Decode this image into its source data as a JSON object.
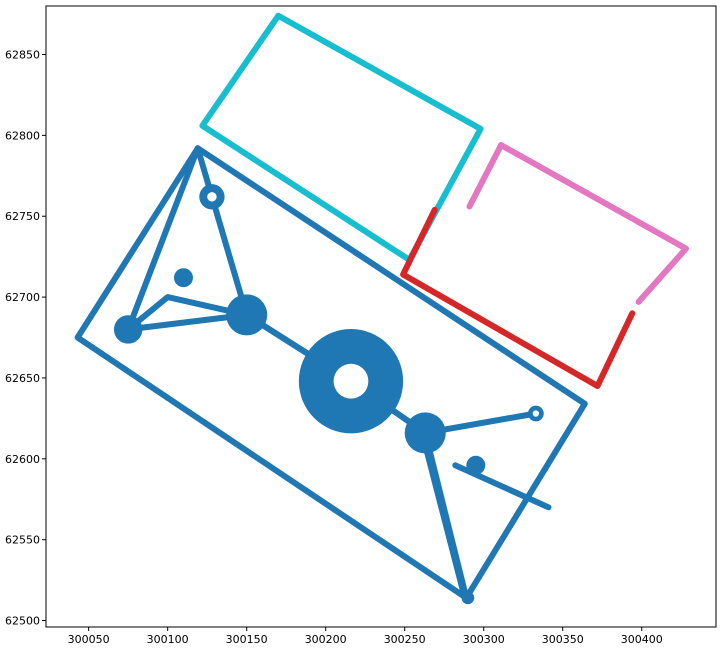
{
  "chart_data": {
    "type": "map",
    "title": "",
    "xlabel": "",
    "ylabel": "",
    "xlim": [
      300023,
      300447
    ],
    "ylim": [
      62496,
      62880
    ],
    "grid": false,
    "x_ticks": [
      300050,
      300100,
      300150,
      300200,
      300250,
      300300,
      300350,
      300400
    ],
    "y_ticks": [
      62500,
      62550,
      62600,
      62650,
      62700,
      62750,
      62800,
      62850
    ],
    "x_tick_labels": [
      "300050",
      "300100",
      "300150",
      "300200",
      "300250",
      "300300",
      "300350",
      "300400"
    ],
    "y_tick_labels": [
      "62500",
      "62550",
      "62600",
      "62650",
      "62700",
      "62750",
      "62800",
      "62850"
    ],
    "colors": {
      "blue": "#1f77b4",
      "cyan": "#17becf",
      "pink": "#e377c2",
      "red": "#d62728"
    },
    "series": [
      {
        "color": "#1f77b4",
        "kind": "outline",
        "points": [
          [
            300119,
            62792
          ],
          [
            300364,
            62634
          ],
          [
            300289,
            62514
          ],
          [
            300043,
            62675
          ],
          [
            300119,
            62792
          ]
        ]
      },
      {
        "color": "#1f77b4",
        "kind": "road",
        "points": [
          [
            300075,
            62680
          ],
          [
            300150,
            62689
          ],
          [
            300216,
            62648
          ],
          [
            300263,
            62616
          ],
          [
            300333,
            62628
          ]
        ]
      },
      {
        "color": "#1f77b4",
        "kind": "road",
        "points": [
          [
            300119,
            62792
          ],
          [
            300150,
            62689
          ],
          [
            300216,
            62648
          ],
          [
            300263,
            62616
          ],
          [
            300289,
            62514
          ]
        ]
      },
      {
        "color": "#1f77b4",
        "kind": "road",
        "points": [
          [
            300075,
            62680
          ],
          [
            300119,
            62792
          ]
        ]
      },
      {
        "color": "#1f77b4",
        "kind": "road",
        "points": [
          [
            300288,
            62514
          ],
          [
            300261,
            62616
          ]
        ]
      },
      {
        "color": "#1f77b4",
        "kind": "road",
        "points": [
          [
            300075,
            62680
          ],
          [
            300100,
            62700
          ],
          [
            300150,
            62689
          ]
        ]
      },
      {
        "color": "#1f77b4",
        "kind": "road",
        "points": [
          [
            300282,
            62596
          ],
          [
            300341,
            62570
          ]
        ]
      },
      {
        "color": "#17becf",
        "kind": "outline",
        "points": [
          [
            300170,
            62874
          ],
          [
            300298,
            62804
          ],
          [
            300253,
            62723
          ],
          [
            300122,
            62806
          ],
          [
            300170,
            62874
          ]
        ]
      },
      {
        "color": "#e377c2",
        "kind": "outline",
        "points": [
          [
            300311,
            62794
          ],
          [
            300428,
            62730
          ],
          [
            300398,
            62697
          ]
        ]
      },
      {
        "color": "#e377c2",
        "kind": "outline",
        "points": [
          [
            300311,
            62794
          ],
          [
            300291,
            62756
          ]
        ]
      },
      {
        "color": "#d62728",
        "kind": "outline",
        "points": [
          [
            300394,
            62690
          ],
          [
            300372,
            62645
          ],
          [
            300249,
            62714
          ],
          [
            300269,
            62754
          ]
        ]
      }
    ],
    "nodes": [
      {
        "x": 300216,
        "y": 62648,
        "r": 33,
        "hole": 11,
        "color": "#1f77b4"
      },
      {
        "x": 300150,
        "y": 62689,
        "r": 13,
        "color": "#1f77b4"
      },
      {
        "x": 300263,
        "y": 62616,
        "r": 13,
        "color": "#1f77b4"
      },
      {
        "x": 300075,
        "y": 62680,
        "r": 9,
        "color": "#1f77b4"
      },
      {
        "x": 300110,
        "y": 62712,
        "r": 6,
        "color": "#1f77b4"
      },
      {
        "x": 300295,
        "y": 62596,
        "r": 6,
        "color": "#1f77b4"
      },
      {
        "x": 300128,
        "y": 62762,
        "r": 8,
        "hole": 3,
        "color": "#1f77b4"
      },
      {
        "x": 300333,
        "y": 62628,
        "r": 5,
        "hole": 2,
        "color": "#1f77b4"
      },
      {
        "x": 300290,
        "y": 62514,
        "r": 4,
        "color": "#1f77b4"
      }
    ]
  }
}
